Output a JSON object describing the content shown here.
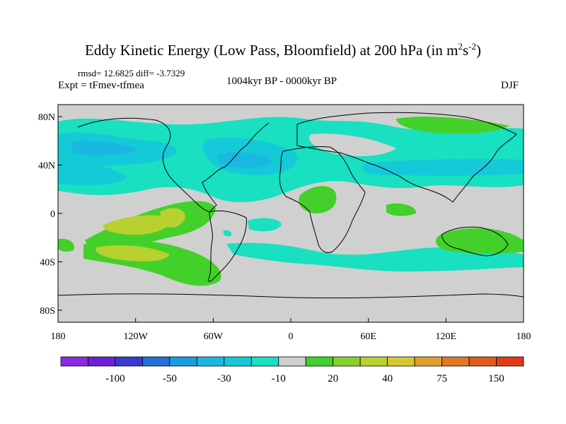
{
  "title": {
    "main": "Eddy Kinetic Energy (Low Pass, Bloomfield) at 200 hPa (in m",
    "sup1": "2",
    "mid": "s",
    "sup2": "-2",
    "end": ")"
  },
  "stats": "rmsd= 12.6825 diff= -3.7329",
  "experiment": "Expt = tFmev-tfmea",
  "period": "1004kyr BP - 0000kyr BP",
  "season": "DJF",
  "map": {
    "y_ticks": [
      {
        "label": "80N",
        "lat": 80
      },
      {
        "label": "40N",
        "lat": 40
      },
      {
        "label": "0",
        "lat": 0
      },
      {
        "label": "40S",
        "lat": -40
      },
      {
        "label": "80S",
        "lat": -80
      }
    ],
    "x_ticks": [
      {
        "label": "180",
        "lon": -180
      },
      {
        "label": "120W",
        "lon": -120
      },
      {
        "label": "60W",
        "lon": -60
      },
      {
        "label": "0",
        "lon": 0
      },
      {
        "label": "60E",
        "lon": 60
      },
      {
        "label": "120E",
        "lon": 120
      },
      {
        "label": "180",
        "lon": 180
      }
    ],
    "lat_range": [
      -90,
      90
    ],
    "lon_range": [
      -180,
      180
    ],
    "background_color": "#d0d0d0"
  },
  "colorbar": {
    "colors": [
      "#8a2be2",
      "#6a20d8",
      "#3a3ad0",
      "#2070d8",
      "#1a9ce0",
      "#1ab8e0",
      "#14cad8",
      "#18e0c0",
      "#d0d0d0",
      "#44d02a",
      "#8ad030",
      "#b8d030",
      "#d8c830",
      "#e0a030",
      "#e07828",
      "#e05a20",
      "#e03a18"
    ],
    "labels": [
      {
        "text": "-100",
        "index": 2
      },
      {
        "text": "-50",
        "index": 4
      },
      {
        "text": "-30",
        "index": 6
      },
      {
        "text": "-10",
        "index": 8
      },
      {
        "text": "20",
        "index": 10
      },
      {
        "text": "40",
        "index": 12
      },
      {
        "text": "75",
        "index": 14
      },
      {
        "text": "150",
        "index": 16
      }
    ]
  }
}
